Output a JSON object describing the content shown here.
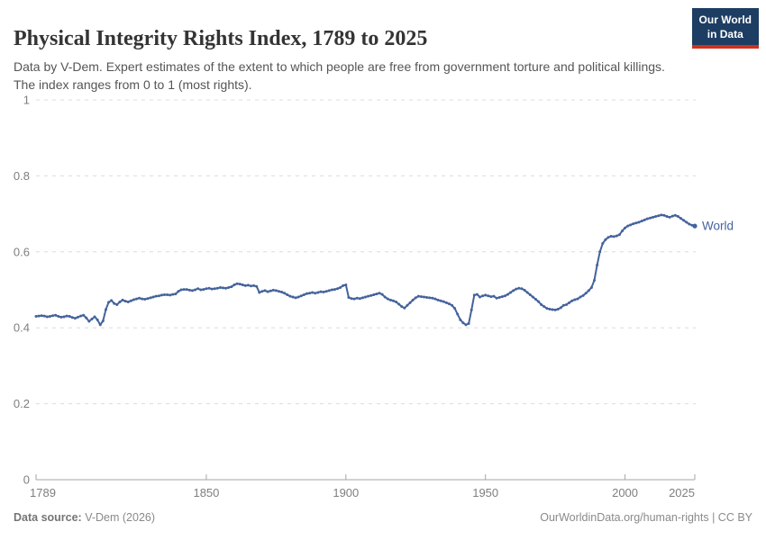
{
  "header": {
    "title": "Physical Integrity Rights Index, 1789 to 2025",
    "subtitle": "Data by V-Dem. Expert estimates of the extent to which people are free from government torture and political killings. The index ranges from 0 to 1 (most rights).",
    "logo": {
      "line1": "Our World",
      "line2": "in Data",
      "bg_color": "#1d3d63",
      "stripe_color": "#d0311d"
    }
  },
  "chart_data": {
    "type": "line",
    "title": "Physical Integrity Rights Index, 1789 to 2025",
    "xlabel": "",
    "ylabel": "",
    "xlim": [
      1789,
      2025
    ],
    "ylim": [
      0,
      1
    ],
    "x_step_years": 1,
    "grid": "horizontal-dashed",
    "legend_position": "end-of-line-label",
    "x_ticks": [
      1789,
      1850,
      1900,
      1950,
      2000,
      2025
    ],
    "x_tick_labels": [
      "1789",
      "1850",
      "1900",
      "1950",
      "2000",
      "2025"
    ],
    "y_ticks": [
      0,
      0.2,
      0.4,
      0.6,
      0.8,
      1
    ],
    "y_tick_labels": [
      "0",
      "0.2",
      "0.4",
      "0.6",
      "0.8",
      "1"
    ],
    "series": [
      {
        "name": "World",
        "color": "#44639c",
        "year_start": 1789,
        "year_end": 2025,
        "values": [
          0.43,
          0.431,
          0.432,
          0.431,
          0.429,
          0.43,
          0.432,
          0.433,
          0.43,
          0.428,
          0.429,
          0.431,
          0.43,
          0.427,
          0.425,
          0.428,
          0.431,
          0.433,
          0.426,
          0.417,
          0.423,
          0.429,
          0.421,
          0.408,
          0.418,
          0.448,
          0.467,
          0.472,
          0.464,
          0.461,
          0.468,
          0.473,
          0.47,
          0.468,
          0.471,
          0.474,
          0.476,
          0.478,
          0.476,
          0.475,
          0.477,
          0.479,
          0.481,
          0.483,
          0.484,
          0.486,
          0.487,
          0.487,
          0.486,
          0.488,
          0.489,
          0.496,
          0.5,
          0.501,
          0.501,
          0.499,
          0.498,
          0.5,
          0.503,
          0.5,
          0.501,
          0.503,
          0.504,
          0.502,
          0.503,
          0.504,
          0.506,
          0.505,
          0.504,
          0.506,
          0.508,
          0.513,
          0.516,
          0.515,
          0.513,
          0.511,
          0.512,
          0.51,
          0.511,
          0.509,
          0.493,
          0.496,
          0.498,
          0.495,
          0.497,
          0.499,
          0.498,
          0.496,
          0.494,
          0.491,
          0.487,
          0.483,
          0.481,
          0.479,
          0.481,
          0.484,
          0.487,
          0.49,
          0.491,
          0.493,
          0.491,
          0.493,
          0.495,
          0.494,
          0.496,
          0.498,
          0.5,
          0.501,
          0.503,
          0.506,
          0.511,
          0.513,
          0.48,
          0.477,
          0.476,
          0.478,
          0.477,
          0.479,
          0.481,
          0.483,
          0.485,
          0.487,
          0.489,
          0.491,
          0.488,
          0.481,
          0.476,
          0.473,
          0.471,
          0.468,
          0.462,
          0.456,
          0.452,
          0.459,
          0.466,
          0.473,
          0.479,
          0.483,
          0.482,
          0.481,
          0.48,
          0.479,
          0.478,
          0.476,
          0.473,
          0.471,
          0.469,
          0.466,
          0.463,
          0.459,
          0.451,
          0.436,
          0.421,
          0.413,
          0.408,
          0.411,
          0.447,
          0.486,
          0.488,
          0.481,
          0.484,
          0.486,
          0.484,
          0.482,
          0.483,
          0.478,
          0.48,
          0.482,
          0.484,
          0.488,
          0.493,
          0.498,
          0.502,
          0.504,
          0.503,
          0.499,
          0.493,
          0.487,
          0.481,
          0.475,
          0.469,
          0.461,
          0.456,
          0.451,
          0.449,
          0.448,
          0.447,
          0.449,
          0.453,
          0.459,
          0.461,
          0.466,
          0.471,
          0.474,
          0.476,
          0.481,
          0.485,
          0.491,
          0.498,
          0.506,
          0.525,
          0.565,
          0.6,
          0.622,
          0.632,
          0.638,
          0.641,
          0.64,
          0.642,
          0.645,
          0.655,
          0.663,
          0.668,
          0.671,
          0.674,
          0.676,
          0.678,
          0.681,
          0.684,
          0.687,
          0.689,
          0.691,
          0.693,
          0.695,
          0.697,
          0.696,
          0.693,
          0.691,
          0.694,
          0.696,
          0.693,
          0.688,
          0.683,
          0.678,
          0.673,
          0.67,
          0.668
        ]
      }
    ],
    "style": {
      "grid_color": "#dcdcdc",
      "axis_color": "#a6a6a6",
      "tick_label_color": "#7f7f7f"
    }
  },
  "footer": {
    "source_label": "Data source:",
    "source_value": " V-Dem (2026)",
    "right_text": "OurWorldinData.org/human-rights | CC BY"
  }
}
